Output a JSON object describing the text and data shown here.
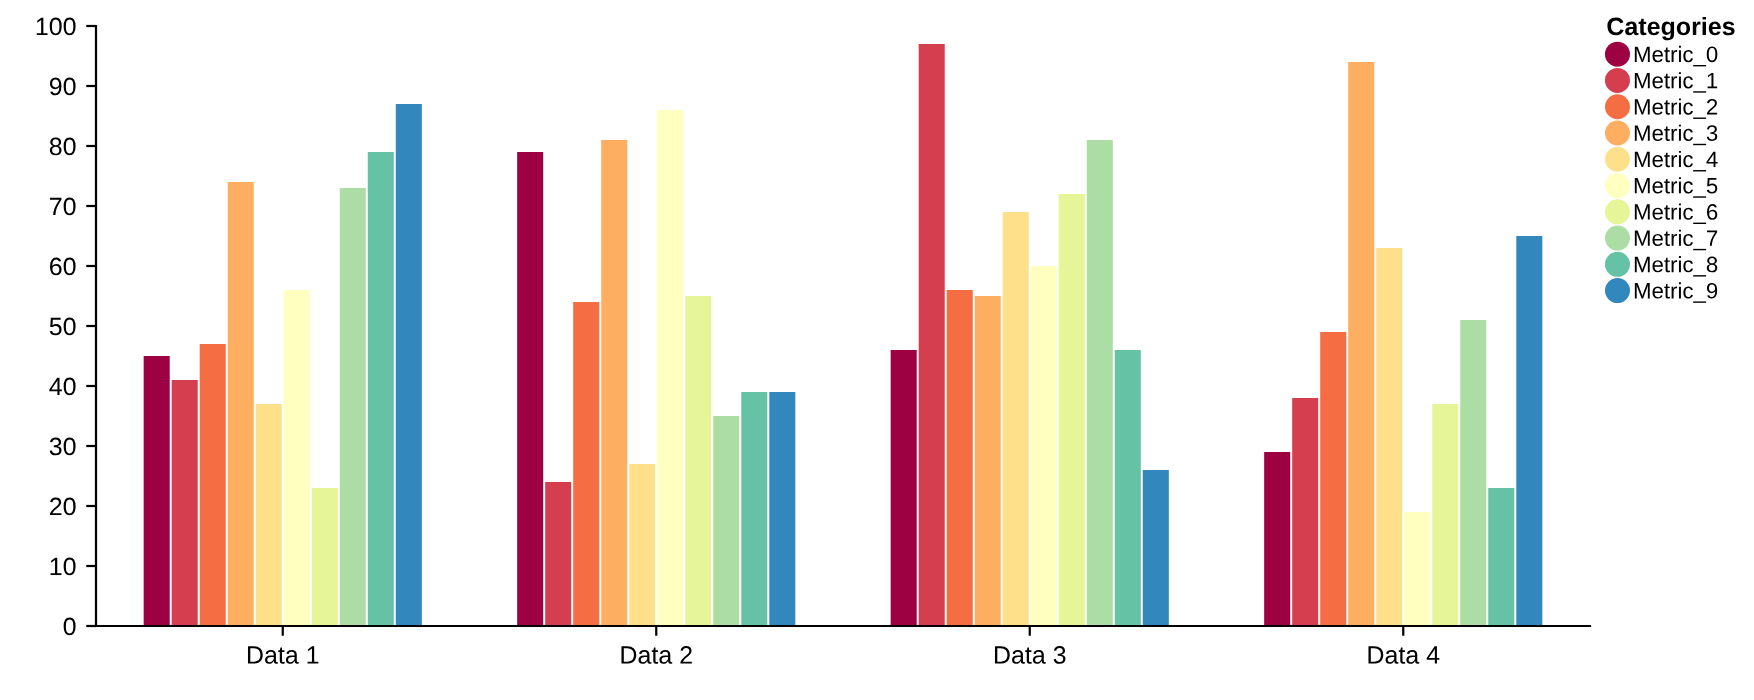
{
  "chart_data": {
    "type": "bar",
    "legend_title": "Categories",
    "legend": "top right",
    "marker": "circle",
    "grid": false,
    "categories": [
      "Data 1",
      "Data 2",
      "Data 3",
      "Data 4"
    ],
    "ylim": [
      0,
      100
    ],
    "yticks": [
      0,
      10,
      20,
      30,
      40,
      50,
      60,
      70,
      80,
      90,
      100
    ],
    "series": [
      {
        "name": "Metric_0",
        "color": "#9e0142",
        "values": [
          45,
          79,
          46,
          29
        ]
      },
      {
        "name": "Metric_1",
        "color": "#d53e4f",
        "values": [
          41,
          24,
          97,
          38
        ]
      },
      {
        "name": "Metric_2",
        "color": "#f46d43",
        "values": [
          47,
          54,
          56,
          49
        ]
      },
      {
        "name": "Metric_3",
        "color": "#fdae61",
        "values": [
          74,
          81,
          55,
          94
        ]
      },
      {
        "name": "Metric_4",
        "color": "#fee08b",
        "values": [
          37,
          27,
          69,
          63
        ]
      },
      {
        "name": "Metric_5",
        "color": "#ffffbf",
        "values": [
          56,
          86,
          60,
          19
        ]
      },
      {
        "name": "Metric_6",
        "color": "#e6f598",
        "values": [
          23,
          55,
          72,
          37
        ]
      },
      {
        "name": "Metric_7",
        "color": "#abdda4",
        "values": [
          73,
          35,
          81,
          51
        ]
      },
      {
        "name": "Metric_8",
        "color": "#66c2a5",
        "values": [
          79,
          39,
          46,
          23
        ]
      },
      {
        "name": "Metric_9",
        "color": "#3288bd",
        "values": [
          87,
          39,
          26,
          65
        ]
      }
    ]
  }
}
